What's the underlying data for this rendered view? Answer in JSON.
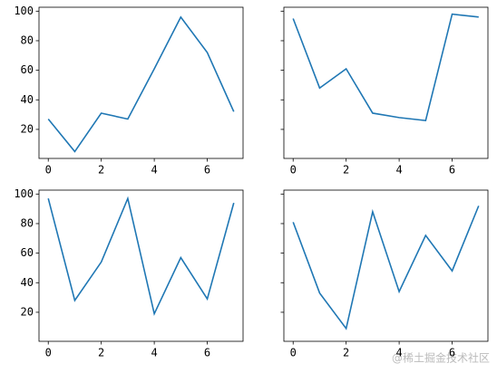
{
  "chart_data": [
    {
      "type": "line",
      "x": [
        0,
        1,
        2,
        3,
        4,
        5,
        6,
        7
      ],
      "values": [
        27,
        5,
        31,
        27,
        61,
        96,
        72,
        32
      ],
      "color": "#1f77b4",
      "xlim": [
        -0.35,
        7.35
      ],
      "ylim": [
        0.35,
        102.65
      ],
      "xticks": [
        0,
        2,
        4,
        6
      ],
      "yticks": [
        20,
        40,
        60,
        80,
        100
      ]
    },
    {
      "type": "line",
      "x": [
        0,
        1,
        2,
        3,
        4,
        5,
        6,
        7
      ],
      "values": [
        95,
        48,
        61,
        31,
        28,
        26,
        98,
        96
      ],
      "color": "#1f77b4",
      "xlim": [
        -0.35,
        7.35
      ],
      "ylim": [
        0.35,
        102.65
      ],
      "xticks": [
        0,
        2,
        4,
        6
      ],
      "yticks": [
        20,
        40,
        60,
        80,
        100
      ]
    },
    {
      "type": "line",
      "x": [
        0,
        1,
        2,
        3,
        4,
        5,
        6,
        7
      ],
      "values": [
        97,
        28,
        54,
        97,
        19,
        57,
        29,
        94
      ],
      "color": "#1f77b4",
      "xlim": [
        -0.35,
        7.35
      ],
      "ylim": [
        0.35,
        102.65
      ],
      "xticks": [
        0,
        2,
        4,
        6
      ],
      "yticks": [
        20,
        40,
        60,
        80,
        100
      ]
    },
    {
      "type": "line",
      "x": [
        0,
        1,
        2,
        3,
        4,
        5,
        6,
        7
      ],
      "values": [
        81,
        33,
        9,
        88,
        34,
        72,
        48,
        92
      ],
      "color": "#1f77b4",
      "xlim": [
        -0.35,
        7.35
      ],
      "ylim": [
        0.35,
        102.65
      ],
      "xticks": [
        0,
        2,
        4,
        6
      ],
      "yticks": [
        20,
        40,
        60,
        80,
        100
      ]
    }
  ],
  "watermark": "@稀土掘金技术社区"
}
